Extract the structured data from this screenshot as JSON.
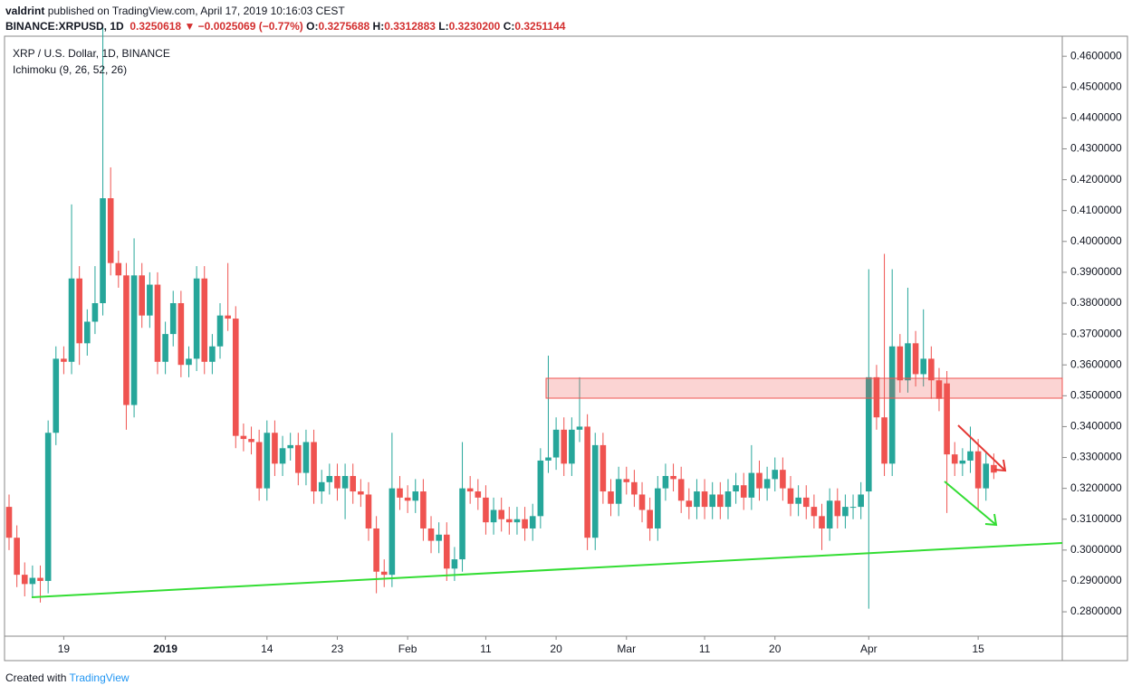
{
  "header": {
    "author": "valdrint",
    "published": "published on TradingView.com, April 17, 2019 10:16:03 CEST",
    "symbol": "BINANCE:XRPUSD, 1D",
    "last": "0.3250618",
    "change": "−0.0025069 (−0.77%)",
    "ohlc": [
      {
        "label": "O:",
        "value": "0.3275688"
      },
      {
        "label": "H:",
        "value": "0.3312883"
      },
      {
        "label": "L:",
        "value": "0.3230200"
      },
      {
        "label": "C:",
        "value": "0.3251144"
      }
    ]
  },
  "footer": {
    "created": "Created with",
    "brand": "TradingView"
  },
  "chart_data": {
    "type": "candlestick",
    "title": "XRP / U.S. Dollar, 1D, BINANCE",
    "indicator": "Ichimoku (9, 26, 52, 26)",
    "up_color": "#26a69a",
    "down_color": "#ef5350",
    "categories": [
      null,
      null,
      null,
      null,
      null,
      null,
      null,
      "19",
      null,
      null,
      null,
      null,
      null,
      null,
      null,
      null,
      null,
      null,
      null,
      null,
      "2019",
      null,
      null,
      null,
      null,
      null,
      null,
      null,
      null,
      null,
      null,
      null,
      null,
      "14",
      null,
      null,
      null,
      null,
      null,
      null,
      null,
      null,
      "23",
      null,
      null,
      null,
      null,
      null,
      null,
      null,
      null,
      "Feb",
      null,
      null,
      null,
      null,
      null,
      null,
      null,
      null,
      null,
      "11",
      null,
      null,
      null,
      null,
      null,
      null,
      null,
      null,
      "20",
      null,
      null,
      null,
      null,
      null,
      null,
      null,
      null,
      "Mar",
      null,
      null,
      null,
      null,
      null,
      null,
      null,
      null,
      null,
      "11",
      null,
      null,
      null,
      null,
      null,
      null,
      null,
      null,
      "20",
      null,
      null,
      null,
      null,
      null,
      null,
      null,
      null,
      null,
      null,
      null,
      "Apr",
      null,
      null,
      null,
      null,
      null,
      null,
      null,
      null,
      null,
      null,
      null,
      null,
      null,
      "15",
      null,
      null
    ],
    "open": [
      0.314,
      0.304,
      0.292,
      0.289,
      0.291,
      0.29,
      0.338,
      0.362,
      0.361,
      0.388,
      0.367,
      0.374,
      0.38,
      0.414,
      0.393,
      0.389,
      0.347,
      0.389,
      0.376,
      0.386,
      0.361,
      0.37,
      0.38,
      0.36,
      0.362,
      0.388,
      0.361,
      0.366,
      0.376,
      0.375,
      0.337,
      0.336,
      0.335,
      0.32,
      0.338,
      0.328,
      0.333,
      0.334,
      0.325,
      0.335,
      0.319,
      0.322,
      0.324,
      0.32,
      0.324,
      0.319,
      0.318,
      0.307,
      0.293,
      0.292,
      0.32,
      0.317,
      0.316,
      0.319,
      0.307,
      0.303,
      0.305,
      0.294,
      0.297,
      0.32,
      0.319,
      0.317,
      0.309,
      0.313,
      0.31,
      0.309,
      0.31,
      0.307,
      0.311,
      0.329,
      0.33,
      0.339,
      0.328,
      0.339,
      0.34,
      0.304,
      0.334,
      0.319,
      0.315,
      0.323,
      0.322,
      0.318,
      0.313,
      0.307,
      0.32,
      0.324,
      0.323,
      0.316,
      0.314,
      0.319,
      0.314,
      0.318,
      0.314,
      0.319,
      0.321,
      0.317,
      0.325,
      0.32,
      0.323,
      0.326,
      0.32,
      0.315,
      0.317,
      0.314,
      0.311,
      0.307,
      0.316,
      0.311,
      0.314,
      0.314,
      0.319,
      0.356,
      0.343,
      0.328,
      0.366,
      0.355,
      0.367,
      0.357,
      0.362,
      0.355,
      0.354,
      0.331,
      0.328,
      0.329,
      0.332,
      0.32,
      0.3275688
    ],
    "high": [
      0.318,
      0.308,
      0.296,
      0.295,
      0.295,
      0.342,
      0.366,
      0.366,
      0.412,
      0.392,
      0.378,
      0.392,
      0.47,
      0.424,
      0.397,
      0.393,
      0.401,
      0.393,
      0.39,
      0.39,
      0.374,
      0.384,
      0.384,
      0.366,
      0.392,
      0.392,
      0.37,
      0.38,
      0.393,
      0.379,
      0.341,
      0.34,
      0.339,
      0.342,
      0.342,
      0.337,
      0.338,
      0.338,
      0.339,
      0.339,
      0.326,
      0.328,
      0.328,
      0.328,
      0.328,
      0.323,
      0.322,
      0.311,
      0.297,
      0.338,
      0.324,
      0.321,
      0.323,
      0.323,
      0.311,
      0.309,
      0.309,
      0.301,
      0.335,
      0.324,
      0.323,
      0.321,
      0.317,
      0.317,
      0.314,
      0.314,
      0.314,
      0.315,
      0.333,
      0.363,
      0.343,
      0.343,
      0.343,
      0.356,
      0.344,
      0.338,
      0.338,
      0.323,
      0.327,
      0.327,
      0.326,
      0.322,
      0.317,
      0.324,
      0.328,
      0.328,
      0.327,
      0.32,
      0.323,
      0.323,
      0.322,
      0.322,
      0.323,
      0.325,
      0.325,
      0.334,
      0.329,
      0.327,
      0.33,
      0.33,
      0.324,
      0.321,
      0.321,
      0.318,
      0.315,
      0.32,
      0.32,
      0.318,
      0.318,
      0.322,
      0.391,
      0.36,
      0.396,
      0.391,
      0.37,
      0.385,
      0.371,
      0.378,
      0.366,
      0.359,
      0.358,
      0.335,
      0.333,
      0.34,
      0.336,
      0.332,
      0.3312883
    ],
    "low": [
      0.3,
      0.288,
      0.285,
      0.285,
      0.283,
      0.286,
      0.334,
      0.357,
      0.357,
      0.36,
      0.363,
      0.37,
      0.376,
      0.389,
      0.385,
      0.339,
      0.343,
      0.372,
      0.372,
      0.357,
      0.357,
      0.366,
      0.356,
      0.356,
      0.358,
      0.357,
      0.357,
      0.362,
      0.371,
      0.333,
      0.332,
      0.331,
      0.316,
      0.316,
      0.324,
      0.324,
      0.329,
      0.321,
      0.321,
      0.315,
      0.315,
      0.318,
      0.316,
      0.31,
      0.315,
      0.314,
      0.303,
      0.286,
      0.288,
      0.288,
      0.313,
      0.312,
      0.312,
      0.303,
      0.299,
      0.299,
      0.29,
      0.29,
      0.293,
      0.315,
      0.313,
      0.305,
      0.305,
      0.306,
      0.305,
      0.305,
      0.303,
      0.303,
      0.307,
      0.325,
      0.326,
      0.324,
      0.324,
      0.335,
      0.3,
      0.3,
      0.315,
      0.311,
      0.311,
      0.318,
      0.314,
      0.309,
      0.303,
      0.303,
      0.316,
      0.319,
      0.312,
      0.31,
      0.31,
      0.31,
      0.31,
      0.31,
      0.31,
      0.315,
      0.313,
      0.313,
      0.316,
      0.316,
      0.319,
      0.316,
      0.311,
      0.311,
      0.31,
      0.307,
      0.3,
      0.303,
      0.307,
      0.307,
      0.31,
      0.31,
      0.281,
      0.339,
      0.324,
      0.324,
      0.351,
      0.351,
      0.353,
      0.353,
      0.349,
      0.345,
      0.312,
      0.324,
      0.324,
      0.325,
      0.313,
      0.316,
      0.32302
    ],
    "close": [
      0.304,
      0.292,
      0.289,
      0.291,
      0.29,
      0.338,
      0.362,
      0.361,
      0.388,
      0.367,
      0.374,
      0.38,
      0.414,
      0.393,
      0.389,
      0.347,
      0.389,
      0.376,
      0.386,
      0.361,
      0.37,
      0.38,
      0.36,
      0.362,
      0.388,
      0.361,
      0.366,
      0.376,
      0.375,
      0.337,
      0.336,
      0.335,
      0.32,
      0.338,
      0.328,
      0.333,
      0.334,
      0.325,
      0.335,
      0.319,
      0.322,
      0.324,
      0.32,
      0.324,
      0.319,
      0.318,
      0.307,
      0.293,
      0.292,
      0.32,
      0.317,
      0.316,
      0.319,
      0.307,
      0.303,
      0.305,
      0.294,
      0.297,
      0.32,
      0.319,
      0.317,
      0.309,
      0.313,
      0.31,
      0.309,
      0.31,
      0.307,
      0.311,
      0.329,
      0.33,
      0.339,
      0.328,
      0.339,
      0.34,
      0.304,
      0.334,
      0.319,
      0.315,
      0.323,
      0.322,
      0.318,
      0.313,
      0.307,
      0.32,
      0.324,
      0.323,
      0.316,
      0.314,
      0.319,
      0.314,
      0.318,
      0.314,
      0.319,
      0.321,
      0.317,
      0.325,
      0.32,
      0.323,
      0.326,
      0.32,
      0.315,
      0.317,
      0.314,
      0.311,
      0.307,
      0.316,
      0.311,
      0.314,
      0.314,
      0.318,
      0.356,
      0.343,
      0.328,
      0.366,
      0.355,
      0.367,
      0.357,
      0.362,
      0.355,
      0.349,
      0.331,
      0.328,
      0.329,
      0.332,
      0.32,
      0.328,
      0.3251144
    ],
    "ylim": [
      0.2721,
      0.4665
    ],
    "yticks": [
      {
        "value": 0.28,
        "label": "0.2800000"
      },
      {
        "value": 0.29,
        "label": "0.2900000"
      },
      {
        "value": 0.3,
        "label": "0.3000000"
      },
      {
        "value": 0.31,
        "label": "0.3100000"
      },
      {
        "value": 0.32,
        "label": "0.3200000"
      },
      {
        "value": 0.33,
        "label": "0.3300000"
      },
      {
        "value": 0.34,
        "label": "0.3400000"
      },
      {
        "value": 0.35,
        "label": "0.3500000"
      },
      {
        "value": 0.36,
        "label": "0.3600000"
      },
      {
        "value": 0.37,
        "label": "0.3700000"
      },
      {
        "value": 0.38,
        "label": "0.3800000"
      },
      {
        "value": 0.39,
        "label": "0.3900000"
      },
      {
        "value": 0.4,
        "label": "0.4000000"
      },
      {
        "value": 0.41,
        "label": "0.4100000"
      },
      {
        "value": 0.42,
        "label": "0.4200000"
      },
      {
        "value": 0.43,
        "label": "0.4300000"
      },
      {
        "value": 0.44,
        "label": "0.4400000"
      },
      {
        "value": 0.45,
        "label": "0.4500000"
      },
      {
        "value": 0.46,
        "label": "0.4600000"
      }
    ]
  }
}
